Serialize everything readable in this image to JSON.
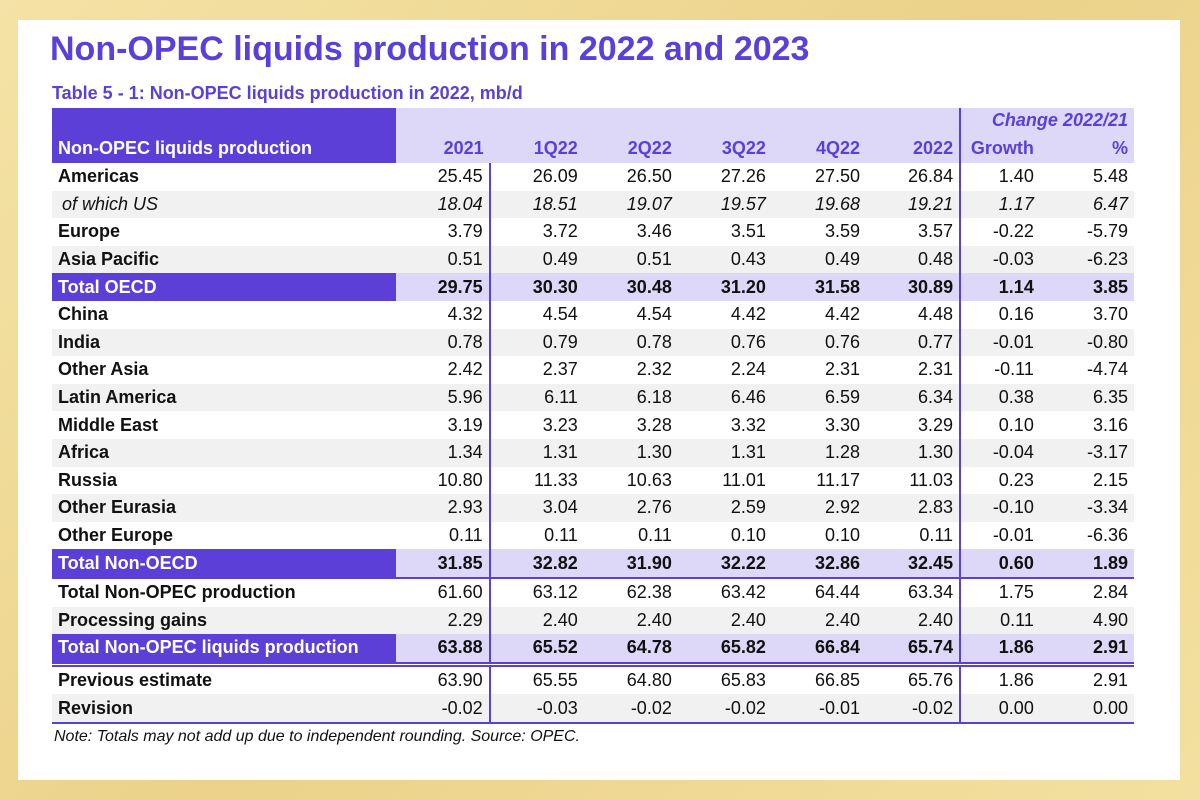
{
  "title": "Non-OPEC liquids production in 2022 and 2023",
  "subtitle": "Table 5 - 1: Non-OPEC liquids production in 2022, mb/d",
  "header": {
    "label": "Non-OPEC liquids production",
    "change": "Change 2022/21",
    "columns": [
      "2021",
      "1Q22",
      "2Q22",
      "3Q22",
      "4Q22",
      "2022",
      "Growth",
      "%"
    ]
  },
  "rows": [
    {
      "label": "Americas",
      "values": [
        "25.45",
        "26.09",
        "26.50",
        "27.26",
        "27.50",
        "26.84",
        "1.40",
        "5.48"
      ]
    },
    {
      "label": "of which US",
      "values": [
        "18.04",
        "18.51",
        "19.07",
        "19.57",
        "19.68",
        "19.21",
        "1.17",
        "6.47"
      ]
    },
    {
      "label": "Europe",
      "values": [
        "3.79",
        "3.72",
        "3.46",
        "3.51",
        "3.59",
        "3.57",
        "-0.22",
        "-5.79"
      ]
    },
    {
      "label": "Asia Pacific",
      "values": [
        "0.51",
        "0.49",
        "0.51",
        "0.43",
        "0.49",
        "0.48",
        "-0.03",
        "-6.23"
      ]
    },
    {
      "label": "Total OECD",
      "values": [
        "29.75",
        "30.30",
        "30.48",
        "31.20",
        "31.58",
        "30.89",
        "1.14",
        "3.85"
      ]
    },
    {
      "label": "China",
      "values": [
        "4.32",
        "4.54",
        "4.54",
        "4.42",
        "4.42",
        "4.48",
        "0.16",
        "3.70"
      ]
    },
    {
      "label": "India",
      "values": [
        "0.78",
        "0.79",
        "0.78",
        "0.76",
        "0.76",
        "0.77",
        "-0.01",
        "-0.80"
      ]
    },
    {
      "label": "Other Asia",
      "values": [
        "2.42",
        "2.37",
        "2.32",
        "2.24",
        "2.31",
        "2.31",
        "-0.11",
        "-4.74"
      ]
    },
    {
      "label": "Latin America",
      "values": [
        "5.96",
        "6.11",
        "6.18",
        "6.46",
        "6.59",
        "6.34",
        "0.38",
        "6.35"
      ]
    },
    {
      "label": "Middle East",
      "values": [
        "3.19",
        "3.23",
        "3.28",
        "3.32",
        "3.30",
        "3.29",
        "0.10",
        "3.16"
      ]
    },
    {
      "label": "Africa",
      "values": [
        "1.34",
        "1.31",
        "1.30",
        "1.31",
        "1.28",
        "1.30",
        "-0.04",
        "-3.17"
      ]
    },
    {
      "label": "Russia",
      "values": [
        "10.80",
        "11.33",
        "10.63",
        "11.01",
        "11.17",
        "11.03",
        "0.23",
        "2.15"
      ]
    },
    {
      "label": "Other Eurasia",
      "values": [
        "2.93",
        "3.04",
        "2.76",
        "2.59",
        "2.92",
        "2.83",
        "-0.10",
        "-3.34"
      ]
    },
    {
      "label": "Other Europe",
      "values": [
        "0.11",
        "0.11",
        "0.11",
        "0.10",
        "0.10",
        "0.11",
        "-0.01",
        "-6.36"
      ]
    },
    {
      "label": "Total Non-OECD",
      "values": [
        "31.85",
        "32.82",
        "31.90",
        "32.22",
        "32.86",
        "32.45",
        "0.60",
        "1.89"
      ]
    },
    {
      "label": "Total Non-OPEC production",
      "values": [
        "61.60",
        "63.12",
        "62.38",
        "63.42",
        "64.44",
        "63.34",
        "1.75",
        "2.84"
      ]
    },
    {
      "label": "Processing gains",
      "values": [
        "2.29",
        "2.40",
        "2.40",
        "2.40",
        "2.40",
        "2.40",
        "0.11",
        "4.90"
      ]
    },
    {
      "label": "Total Non-OPEC liquids production",
      "values": [
        "63.88",
        "65.52",
        "64.78",
        "65.82",
        "66.84",
        "65.74",
        "1.86",
        "2.91"
      ]
    },
    {
      "label": "Previous estimate",
      "values": [
        "63.90",
        "65.55",
        "64.80",
        "65.83",
        "66.85",
        "65.76",
        "1.86",
        "2.91"
      ]
    },
    {
      "label": "Revision",
      "values": [
        "-0.02",
        "-0.03",
        "-0.02",
        "-0.02",
        "-0.01",
        "-0.02",
        "0.00",
        "0.00"
      ]
    }
  ],
  "note": "Note: Totals may not add up due to independent rounding. Source: OPEC.",
  "colors": {
    "accent": "#5b3fd6",
    "header_fill": "#ddd8f8",
    "stripe": "#f1f1f1",
    "frame": "#ecd28a"
  }
}
